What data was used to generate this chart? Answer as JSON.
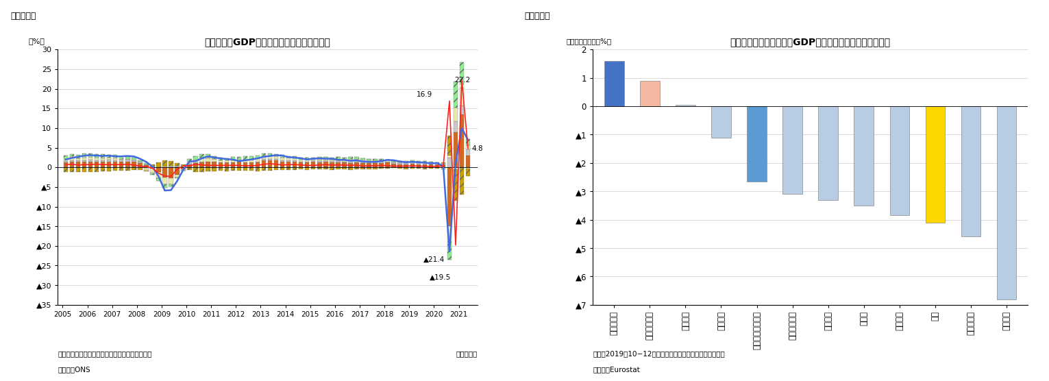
{
  "chart1": {
    "title": "英国の実質GDP成長率（需要項目別寄与度）",
    "ylabel": "（%）",
    "xlabel_note": "（四半期）",
    "note1": "（注）季節調整値、寄与度は前年同期比の寄与度",
    "note2": "（資料）ONS",
    "ylim": [
      -35,
      30
    ],
    "yticks": [
      30,
      25,
      20,
      15,
      10,
      5,
      0,
      -5,
      -10,
      -15,
      -20,
      -25,
      -30,
      -35
    ],
    "ytick_labels": [
      "30",
      "25",
      "20",
      "15",
      "10",
      "5",
      "0",
      "▲5",
      "▲10",
      "▲15",
      "▲20",
      "▲25",
      "▲30",
      "▲35"
    ],
    "bar_colors": {
      "import": "#C8A000",
      "export": "#90EE90",
      "inventory": "#FFFFC0",
      "investment": "#E8E8B0",
      "govt": "#C8C8C8",
      "personal": "#D2691E",
      "gdp_qoq_line": "#FF2020",
      "gdp_yoy_line": "#4169E1"
    },
    "gdp_qoq": [
      0.7,
      0.8,
      0.6,
      0.7,
      0.7,
      0.8,
      0.7,
      0.7,
      0.7,
      0.7,
      0.8,
      0.6,
      0.3,
      0.2,
      -0.2,
      -1.5,
      -2.2,
      -2.3,
      -0.5,
      0.4,
      0.4,
      0.8,
      0.6,
      0.5,
      0.5,
      0.5,
      0.5,
      0.5,
      0.5,
      0.4,
      0.4,
      0.5,
      0.8,
      0.9,
      0.8,
      0.6,
      0.7,
      0.7,
      0.6,
      0.5,
      0.5,
      0.6,
      0.7,
      0.6,
      0.6,
      0.6,
      0.5,
      0.6,
      0.3,
      0.4,
      0.4,
      0.5,
      0.4,
      0.3,
      0.3,
      0.3,
      0.4,
      0.3,
      0.3,
      0.2,
      0.3,
      0.3,
      16.9,
      -19.8,
      22.2,
      4.8
    ],
    "gdp_yoy": [
      2.0,
      2.4,
      2.7,
      3.0,
      3.1,
      3.0,
      2.9,
      3.0,
      2.8,
      2.8,
      2.9,
      2.8,
      2.2,
      1.4,
      0.2,
      -2.3,
      -5.9,
      -5.8,
      -3.5,
      -0.6,
      1.5,
      1.6,
      2.3,
      2.8,
      2.5,
      2.3,
      2.1,
      2.0,
      1.6,
      1.8,
      2.0,
      2.3,
      2.7,
      2.9,
      3.1,
      3.0,
      2.6,
      2.5,
      2.3,
      2.0,
      2.2,
      2.3,
      2.2,
      2.2,
      1.9,
      1.9,
      1.7,
      1.8,
      1.5,
      1.4,
      1.4,
      1.6,
      1.9,
      1.8,
      1.5,
      1.3,
      1.4,
      1.3,
      1.2,
      1.0,
      1.1,
      0.3,
      -21.4,
      1.1,
      10.0,
      6.9
    ],
    "personal_contrib": [
      1.3,
      1.5,
      1.4,
      1.5,
      1.5,
      1.5,
      1.4,
      1.5,
      1.4,
      1.5,
      1.5,
      1.4,
      1.0,
      0.5,
      -0.3,
      -1.2,
      -2.5,
      -2.8,
      -1.8,
      -0.5,
      0.8,
      1.0,
      1.3,
      1.5,
      1.4,
      1.3,
      1.2,
      1.3,
      1.4,
      1.2,
      1.2,
      1.3,
      1.8,
      1.8,
      1.7,
      1.5,
      1.5,
      1.5,
      1.3,
      1.3,
      1.4,
      1.3,
      1.4,
      1.3,
      1.3,
      1.2,
      1.1,
      1.3,
      1.0,
      1.0,
      1.0,
      1.1,
      1.2,
      0.9,
      0.8,
      0.7,
      0.9,
      0.8,
      0.8,
      0.7,
      0.8,
      0.8,
      -15.0,
      9.0,
      13.5,
      3.0
    ],
    "govt_contrib": [
      0.3,
      0.3,
      0.3,
      0.3,
      0.4,
      0.3,
      0.4,
      0.4,
      0.4,
      0.4,
      0.4,
      0.3,
      0.4,
      0.3,
      0.2,
      0.1,
      0.1,
      0.2,
      0.2,
      0.3,
      0.3,
      0.2,
      0.1,
      0.0,
      -0.1,
      -0.1,
      -0.1,
      0.0,
      0.0,
      0.1,
      0.1,
      0.2,
      0.3,
      0.3,
      0.4,
      0.3,
      0.3,
      0.3,
      0.2,
      0.2,
      0.3,
      0.3,
      0.3,
      0.3,
      0.3,
      0.3,
      0.3,
      0.3,
      0.3,
      0.3,
      0.3,
      0.3,
      0.3,
      0.3,
      0.3,
      0.3,
      0.3,
      0.3,
      0.3,
      0.3,
      0.3,
      0.3,
      2.5,
      2.8,
      2.2,
      1.5
    ],
    "investment_contrib": [
      0.6,
      0.8,
      0.6,
      0.7,
      0.7,
      0.7,
      0.5,
      0.5,
      0.5,
      0.3,
      0.2,
      0.1,
      0.0,
      -0.5,
      -1.0,
      -1.5,
      -1.8,
      -1.5,
      -0.8,
      -0.3,
      0.5,
      0.8,
      0.9,
      0.8,
      0.7,
      0.5,
      0.5,
      0.5,
      0.6,
      0.6,
      0.7,
      0.8,
      0.8,
      0.8,
      0.7,
      0.6,
      0.6,
      0.5,
      0.4,
      0.5,
      0.4,
      0.4,
      0.4,
      0.4,
      0.5,
      0.5,
      0.6,
      0.6,
      0.5,
      0.4,
      0.4,
      0.3,
      0.2,
      0.1,
      0.2,
      0.3,
      0.2,
      0.2,
      0.2,
      0.1,
      -0.1,
      -0.2,
      -4.0,
      3.5,
      4.5,
      1.2
    ],
    "inventory_contrib": [
      -0.1,
      0.2,
      -0.1,
      0.2,
      0.1,
      -0.1,
      0.2,
      -0.1,
      0.1,
      0.0,
      -0.1,
      0.1,
      -0.2,
      -0.3,
      -0.2,
      -0.1,
      0.1,
      0.2,
      0.1,
      -0.1,
      -0.2,
      -0.1,
      0.1,
      0.2,
      0.1,
      0.0,
      -0.1,
      0.1,
      0.0,
      0.1,
      0.0,
      -0.1,
      0.1,
      0.0,
      0.0,
      0.1,
      0.0,
      -0.1,
      0.1,
      0.0,
      0.0,
      0.1,
      0.0,
      -0.1,
      0.1,
      0.0,
      0.1,
      0.0,
      0.1,
      0.0,
      -0.1,
      0.1,
      0.0,
      0.1,
      0.0,
      -0.1,
      0.1,
      0.0,
      -0.1,
      0.1,
      0.0,
      -0.1,
      0.5,
      -0.5,
      1.0,
      -0.3
    ],
    "export_contrib": [
      0.8,
      0.6,
      0.8,
      0.9,
      0.9,
      0.9,
      0.8,
      0.7,
      0.8,
      0.7,
      0.6,
      0.5,
      0.4,
      0.2,
      -0.3,
      -0.7,
      -0.9,
      -0.5,
      -0.2,
      0.3,
      0.6,
      0.8,
      0.9,
      0.8,
      0.7,
      0.6,
      0.6,
      0.7,
      0.7,
      0.8,
      0.8,
      0.7,
      0.6,
      0.6,
      0.5,
      0.6,
      0.5,
      0.5,
      0.5,
      0.5,
      0.4,
      0.5,
      0.5,
      0.4,
      0.5,
      0.5,
      0.5,
      0.5,
      0.4,
      0.4,
      0.4,
      0.3,
      0.3,
      0.2,
      0.3,
      0.3,
      0.3,
      0.3,
      0.3,
      0.3,
      0.2,
      -0.2,
      -4.5,
      6.5,
      5.5,
      1.5
    ],
    "import_contrib": [
      -1.0,
      -1.2,
      -1.0,
      -1.1,
      -1.2,
      -1.1,
      -1.0,
      -0.9,
      -0.9,
      -0.8,
      -0.7,
      -0.6,
      -0.5,
      -0.2,
      0.6,
      1.1,
      1.6,
      1.2,
      0.7,
      0.2,
      -0.5,
      -1.0,
      -1.1,
      -1.0,
      -0.9,
      -0.8,
      -0.8,
      -0.9,
      -0.9,
      -0.9,
      -0.9,
      -0.9,
      -0.8,
      -0.8,
      -0.7,
      -0.7,
      -0.6,
      -0.6,
      -0.5,
      -0.6,
      -0.5,
      -0.5,
      -0.5,
      -0.5,
      -0.5,
      -0.5,
      -0.6,
      -0.5,
      -0.4,
      -0.4,
      -0.3,
      -0.3,
      -0.3,
      -0.2,
      -0.3,
      -0.3,
      -0.3,
      -0.3,
      -0.3,
      -0.3,
      -0.2,
      0.2,
      5.0,
      -8.0,
      -7.0,
      -2.0
    ]
  },
  "chart2": {
    "title": "英国・ユーロ圏主要国のGDP水準（コロナ禍前との比較）",
    "ylabel": "（コロナ禍前比、%）",
    "note1": "（注）2019年10−12月期比、一部の国は伸び率等から推計",
    "note2": "（資料）Eurostat",
    "categories": [
      "リトアニア",
      "（参考）米国",
      "ラトビア",
      "ベルギー",
      "ユーロ圏（全体）",
      "オーストリア",
      "フランス",
      "ドイツ",
      "イタリア",
      "英国",
      "ポルトガル",
      "スペイン"
    ],
    "values": [
      1.6,
      0.9,
      0.05,
      -1.1,
      -2.65,
      -3.1,
      -3.3,
      -3.5,
      -3.85,
      -4.1,
      -4.6,
      -6.8
    ],
    "bar_colors": [
      "#4472C4",
      "#F4B8A0",
      "#B8CCE4",
      "#B8CCE4",
      "#5B9BD5",
      "#B8CCE4",
      "#B8CCE4",
      "#B8CCE4",
      "#B8CCE4",
      "#FFD700",
      "#B8CCE4",
      "#B8CCE4"
    ],
    "ylim": [
      -7,
      2
    ],
    "yticks": [
      2,
      1,
      0,
      -1,
      -2,
      -3,
      -4,
      -5,
      -6,
      -7
    ],
    "ytick_labels": [
      "2",
      "1",
      "0",
      "▲1",
      "▲2",
      "▲3",
      "▲4",
      "▲5",
      "▲6",
      "▲7"
    ]
  },
  "fig1_label": "（図表１）",
  "fig2_label": "（図表２）"
}
